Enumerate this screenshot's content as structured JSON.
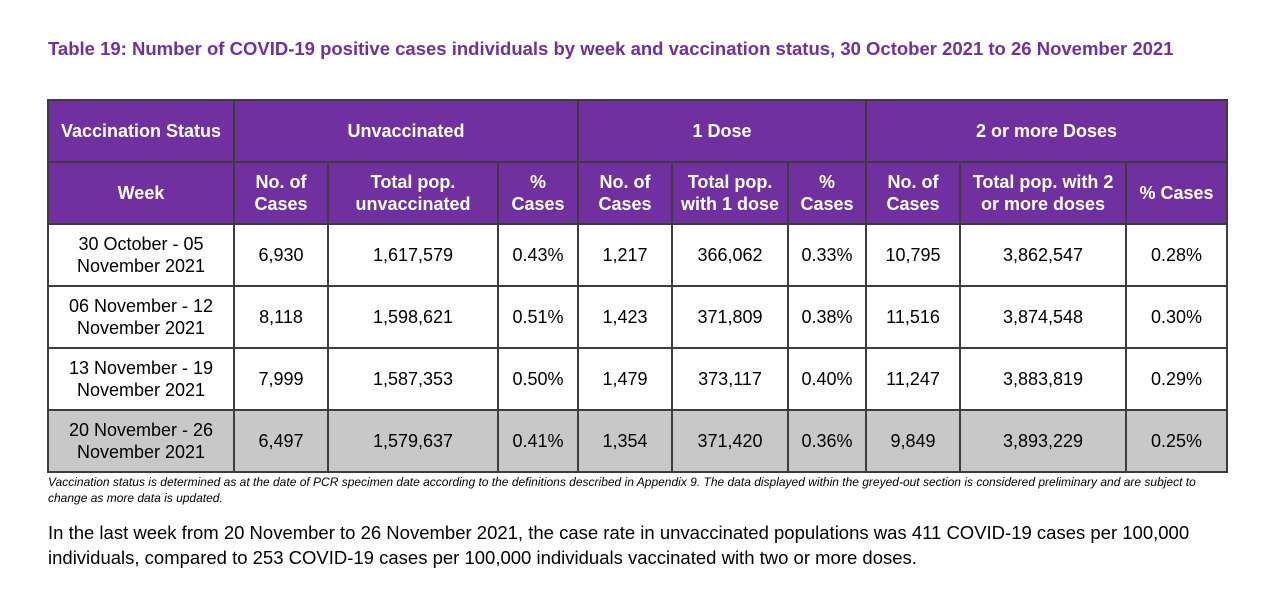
{
  "title": "Table 19: Number of COVID-19 positive cases individuals by week and vaccination status, 30 October 2021 to 26 November 2021",
  "table": {
    "group_header": {
      "status_label": "Vaccination Status",
      "groups": [
        "Unvaccinated",
        "1 Dose",
        "2 or more Doses"
      ]
    },
    "sub_header": {
      "week_label": "Week",
      "columns": [
        "No. of Cases",
        "Total pop. unvaccinated",
        "% Cases",
        "No. of Cases",
        "Total pop. with 1 dose",
        "% Cases",
        "No. of Cases",
        "Total pop. with 2 or more doses",
        "% Cases"
      ]
    },
    "rows": [
      {
        "week": "30 October - 05 November 2021",
        "cells": [
          "6,930",
          "1,617,579",
          "0.43%",
          "1,217",
          "366,062",
          "0.33%",
          "10,795",
          "3,862,547",
          "0.28%"
        ]
      },
      {
        "week": "06 November - 12 November 2021",
        "cells": [
          "8,118",
          "1,598,621",
          "0.51%",
          "1,423",
          "371,809",
          "0.38%",
          "11,516",
          "3,874,548",
          "0.30%"
        ]
      },
      {
        "week": "13 November - 19 November 2021",
        "cells": [
          "7,999",
          "1,587,353",
          "0.50%",
          "1,479",
          "373,117",
          "0.40%",
          "11,247",
          "3,883,819",
          "0.29%"
        ]
      },
      {
        "week": "20 November - 26 November 2021",
        "cells": [
          "6,497",
          "1,579,637",
          "0.41%",
          "1,354",
          "371,420",
          "0.36%",
          "9,849",
          "3,893,229",
          "0.25%"
        ]
      }
    ]
  },
  "footnote": "Vaccination status is determined as at the date of PCR specimen date according to the definitions described in Appendix 9. The data displayed within the greyed-out section is considered preliminary and are subject to change as more data is updated.",
  "summary": "In the last week from 20 November to 26 November 2021, the case rate in unvaccinated populations was 411 COVID-19 cases per 100,000 individuals, compared to 253 COVID-19 cases per 100,000 individuals vaccinated with two or more doses.",
  "colors": {
    "header_purple": "#7030a0",
    "preliminary_grey": "#c8c8c8"
  }
}
